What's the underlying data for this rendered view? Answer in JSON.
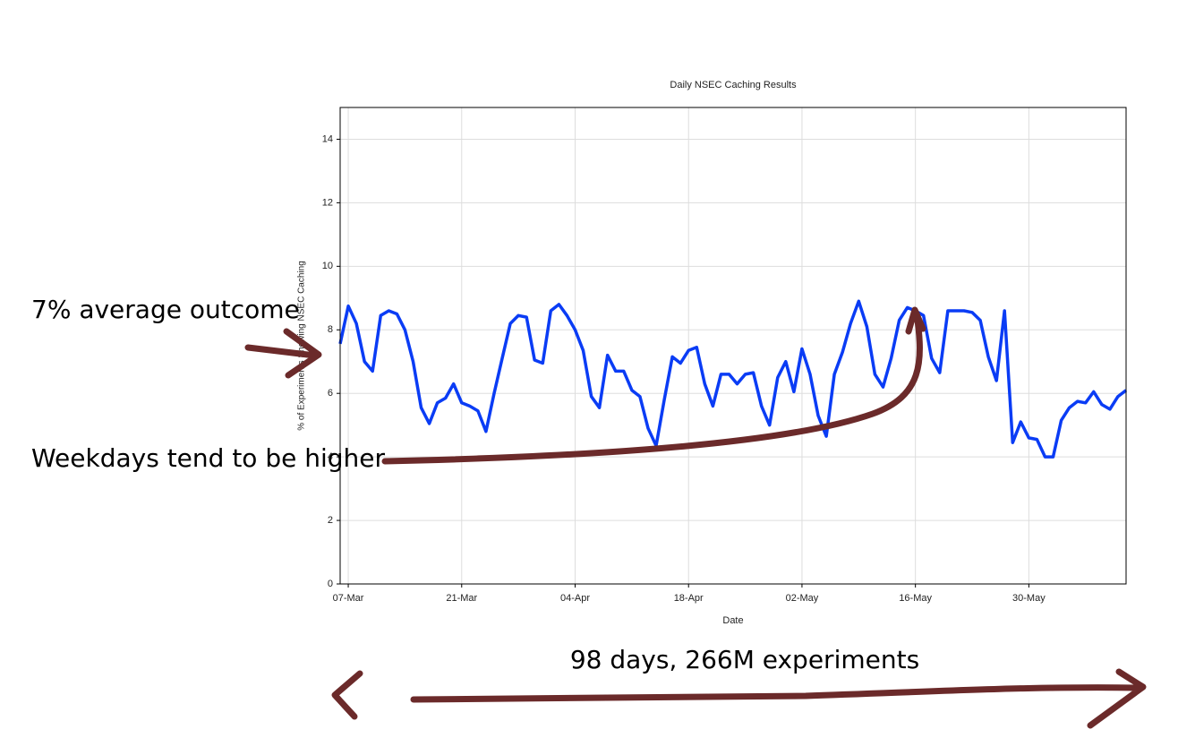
{
  "chart_data": {
    "type": "line",
    "title": "Daily NSEC Caching Results",
    "xlabel": "Date",
    "ylabel": "% of Experiments Showing NSEC Caching",
    "annotations": [
      "7% average outcome",
      "Weekdays tend to be higher",
      "98 days, 266M experiments"
    ],
    "x": [
      "06-Mar",
      "07-Mar",
      "08-Mar",
      "09-Mar",
      "10-Mar",
      "11-Mar",
      "12-Mar",
      "13-Mar",
      "14-Mar",
      "15-Mar",
      "16-Mar",
      "17-Mar",
      "18-Mar",
      "19-Mar",
      "20-Mar",
      "21-Mar",
      "22-Mar",
      "23-Mar",
      "24-Mar",
      "25-Mar",
      "26-Mar",
      "27-Mar",
      "28-Mar",
      "29-Mar",
      "30-Mar",
      "31-Mar",
      "01-Apr",
      "02-Apr",
      "03-Apr",
      "04-Apr",
      "05-Apr",
      "06-Apr",
      "07-Apr",
      "08-Apr",
      "09-Apr",
      "10-Apr",
      "11-Apr",
      "12-Apr",
      "13-Apr",
      "14-Apr",
      "15-Apr",
      "16-Apr",
      "17-Apr",
      "18-Apr",
      "19-Apr",
      "20-Apr",
      "21-Apr",
      "22-Apr",
      "23-Apr",
      "24-Apr",
      "25-Apr",
      "26-Apr",
      "27-Apr",
      "28-Apr",
      "29-Apr",
      "30-Apr",
      "01-May",
      "02-May",
      "03-May",
      "04-May",
      "05-May",
      "06-May",
      "07-May",
      "08-May",
      "09-May",
      "10-May",
      "11-May",
      "12-May",
      "13-May",
      "14-May",
      "15-May",
      "16-May",
      "17-May",
      "18-May",
      "19-May",
      "20-May",
      "21-May",
      "22-May",
      "23-May",
      "24-May",
      "25-May",
      "26-May",
      "27-May",
      "28-May",
      "29-May",
      "30-May",
      "31-May",
      "01-Jun",
      "02-Jun",
      "03-Jun",
      "04-Jun",
      "05-Jun",
      "06-Jun",
      "07-Jun",
      "08-Jun",
      "09-Jun",
      "10-Jun",
      "11-Jun"
    ],
    "xticks": [
      "07-Mar",
      "21-Mar",
      "04-Apr",
      "18-Apr",
      "02-May",
      "16-May",
      "30-May"
    ],
    "series": [
      {
        "name": "NSEC caching",
        "color": "#0a3cf5",
        "values": [
          7.56,
          8.75,
          8.2,
          7.0,
          6.7,
          8.45,
          8.6,
          8.5,
          8.0,
          7.0,
          5.55,
          5.05,
          5.7,
          5.85,
          6.3,
          5.7,
          5.6,
          5.45,
          4.8,
          6.0,
          7.1,
          8.2,
          8.45,
          8.4,
          7.05,
          6.95,
          8.6,
          8.8,
          8.45,
          8.0,
          7.35,
          5.9,
          5.55,
          7.2,
          6.7,
          6.7,
          6.1,
          5.9,
          4.9,
          4.35,
          5.8,
          7.15,
          6.95,
          7.35,
          7.45,
          6.3,
          5.6,
          6.6,
          6.6,
          6.3,
          6.6,
          6.65,
          5.6,
          5.0,
          6.5,
          7.0,
          6.05,
          7.4,
          6.6,
          5.3,
          4.65,
          6.6,
          7.3,
          8.2,
          8.9,
          8.1,
          6.6,
          6.2,
          7.1,
          8.3,
          8.7,
          8.6,
          8.45,
          7.1,
          6.65,
          8.6,
          8.6,
          8.6,
          8.55,
          8.3,
          7.15,
          6.4,
          8.6,
          4.45,
          5.1,
          4.6,
          4.55,
          4.0,
          4.0,
          5.15,
          5.55,
          5.75,
          5.7,
          6.05,
          5.65,
          5.5,
          5.9,
          6.1
        ]
      }
    ],
    "ylim": [
      0,
      15
    ],
    "yticks": [
      0,
      2,
      4,
      6,
      8,
      10,
      12,
      14
    ],
    "grid": true
  }
}
